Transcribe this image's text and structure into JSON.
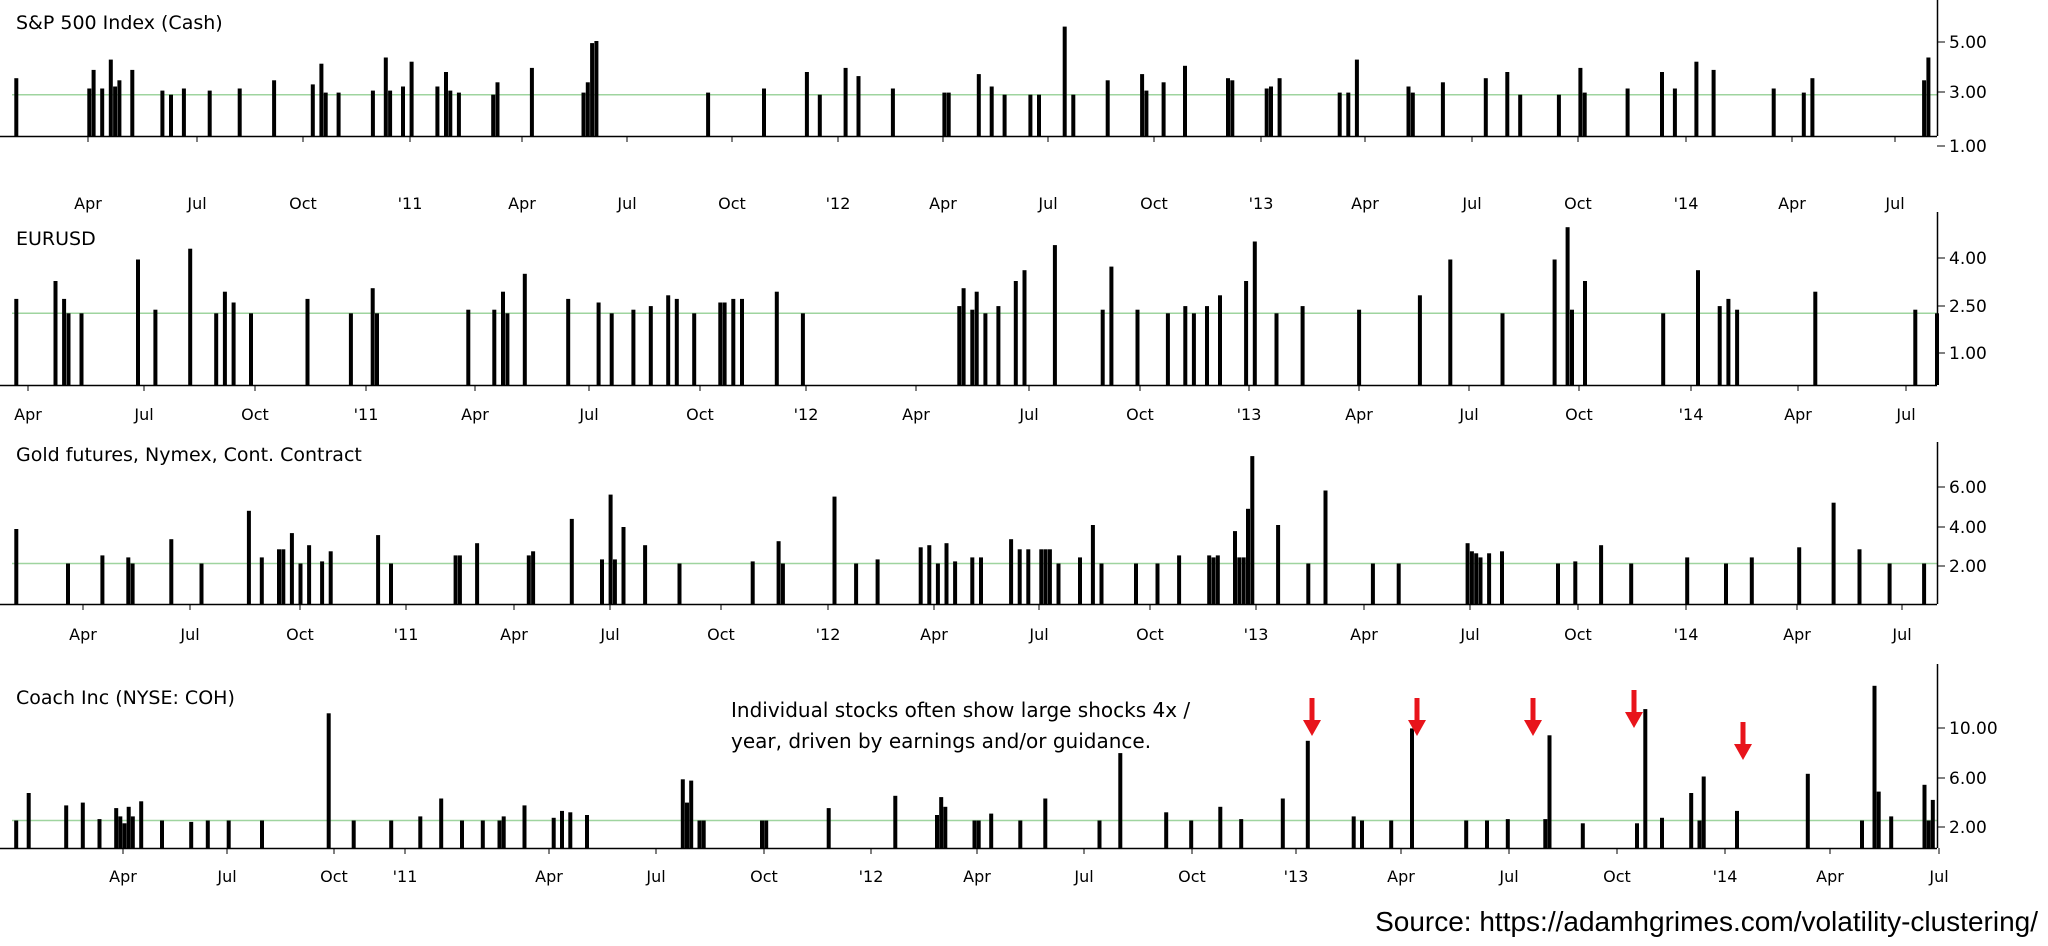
{
  "source_text": "Source: https://adamhgrimes.com/volatility-clustering/",
  "annotation": {
    "lines": [
      "Individual stocks often show large shocks 4x /",
      "year, driven by earnings and/or guidance."
    ],
    "arrow_color": "#e8141b"
  },
  "colors": {
    "bar": "#000000",
    "reference_line": "#9fd49f",
    "axis": "#000000"
  },
  "chart_data": [
    {
      "type": "bar",
      "title": "S&P 500 Index (Cash)",
      "x_labels": [
        "Apr",
        "Jul",
        "Oct",
        "'11",
        "Apr",
        "Jul",
        "Oct",
        "'12",
        "Apr",
        "Jul",
        "Oct",
        "'13",
        "Apr",
        "Jul",
        "Oct",
        "'14",
        "Apr",
        "Jul"
      ],
      "x_range": [
        2010.15,
        2014.63
      ],
      "y_ticks": [
        "5.00",
        "3.00",
        "1.00"
      ],
      "ylim": [
        0,
        6.2
      ],
      "reference_line": 2.0,
      "grid": false,
      "x": [
        2010.16,
        2010.33,
        2010.34,
        2010.36,
        2010.38,
        2010.39,
        2010.4,
        2010.43,
        2010.5,
        2010.52,
        2010.55,
        2010.61,
        2010.68,
        2010.76,
        2010.85,
        2010.87,
        2010.88,
        2010.91,
        2010.99,
        2011.02,
        2011.03,
        2011.06,
        2011.08,
        2011.14,
        2011.16,
        2011.17,
        2011.19,
        2011.27,
        2011.28,
        2011.36,
        2011.48,
        2011.49,
        2011.5,
        2011.51,
        2011.77,
        2011.9,
        2012.0,
        2012.03,
        2012.09,
        2012.12,
        2012.2,
        2012.32,
        2012.33,
        2012.4,
        2012.43,
        2012.46,
        2012.52,
        2012.54,
        2012.6,
        2012.62,
        2012.7,
        2012.78,
        2012.79,
        2012.83,
        2012.88,
        2012.98,
        2012.99,
        2013.07,
        2013.08,
        2013.1,
        2013.24,
        2013.26,
        2013.28,
        2013.4,
        2013.41,
        2013.48,
        2013.58,
        2013.63,
        2013.66,
        2013.75,
        2013.8,
        2013.81,
        2013.91,
        2013.99,
        2014.02,
        2014.07,
        2014.11,
        2014.25,
        2014.32,
        2014.34,
        2014.6,
        2014.61
      ],
      "values": [
        2.8,
        2.3,
        3.2,
        2.3,
        3.7,
        2.4,
        2.7,
        3.2,
        2.2,
        2.0,
        2.3,
        2.2,
        2.3,
        2.7,
        2.5,
        3.5,
        2.1,
        2.1,
        2.2,
        3.8,
        2.2,
        2.4,
        3.6,
        2.4,
        3.1,
        2.2,
        2.1,
        2.0,
        2.6,
        3.3,
        2.1,
        2.6,
        4.5,
        4.6,
        2.1,
        2.3,
        3.1,
        2.0,
        3.3,
        2.9,
        2.3,
        2.1,
        2.1,
        3.0,
        2.4,
        2.0,
        2.0,
        2.0,
        5.3,
        2.0,
        2.7,
        3.0,
        2.2,
        2.6,
        3.4,
        2.8,
        2.7,
        2.3,
        2.4,
        2.8,
        2.1,
        2.1,
        3.7,
        2.4,
        2.1,
        2.6,
        2.8,
        3.1,
        2.0,
        2.0,
        3.3,
        2.1,
        2.3,
        3.1,
        2.3,
        3.6,
        3.2,
        2.3,
        2.1,
        2.8,
        2.7,
        3.8
      ]
    },
    {
      "type": "bar",
      "title": "EURUSD",
      "x_labels": [
        "Apr",
        "Jul",
        "Oct",
        "'11",
        "Apr",
        "Jul",
        "Oct",
        "'12",
        "Apr",
        "Jul",
        "Oct",
        "'13",
        "Apr",
        "Jul",
        "Oct",
        "'14",
        "Apr",
        "Jul"
      ],
      "x_range": [
        2010.2,
        2014.63
      ],
      "y_ticks": [
        "4.00",
        "2.50",
        "1.00"
      ],
      "ylim": [
        0,
        4.6
      ],
      "reference_line": 2.0,
      "grid": false,
      "x": [
        2010.21,
        2010.3,
        2010.32,
        2010.33,
        2010.36,
        2010.49,
        2010.53,
        2010.61,
        2010.67,
        2010.69,
        2010.71,
        2010.75,
        2010.88,
        2010.98,
        2011.03,
        2011.04,
        2011.25,
        2011.31,
        2011.33,
        2011.34,
        2011.38,
        2011.48,
        2011.55,
        2011.58,
        2011.63,
        2011.67,
        2011.71,
        2011.73,
        2011.77,
        2011.83,
        2011.84,
        2011.86,
        2011.88,
        2011.96,
        2012.02,
        2012.38,
        2012.39,
        2012.41,
        2012.42,
        2012.44,
        2012.47,
        2012.51,
        2012.53,
        2012.6,
        2012.71,
        2012.73,
        2012.79,
        2012.86,
        2012.9,
        2012.92,
        2012.95,
        2012.98,
        2013.04,
        2013.06,
        2013.11,
        2013.17,
        2013.3,
        2013.44,
        2013.51,
        2013.63,
        2013.75,
        2013.78,
        2013.79,
        2013.82,
        2014.0,
        2014.08,
        2014.13,
        2014.15,
        2014.17,
        2014.35,
        2014.58,
        2014.63
      ],
      "values": [
        2.4,
        2.9,
        2.4,
        2.0,
        2.0,
        3.5,
        2.1,
        3.8,
        2.0,
        2.6,
        2.3,
        2.0,
        2.4,
        2.0,
        2.7,
        2.0,
        2.1,
        2.1,
        2.6,
        2.0,
        3.1,
        2.4,
        2.3,
        2.0,
        2.1,
        2.2,
        2.5,
        2.4,
        2.0,
        2.3,
        2.3,
        2.4,
        2.4,
        2.6,
        2.0,
        2.2,
        2.7,
        2.1,
        2.6,
        2.0,
        2.2,
        2.9,
        3.2,
        3.9,
        2.1,
        3.3,
        2.1,
        2.0,
        2.2,
        2.0,
        2.2,
        2.5,
        2.9,
        4.0,
        2.0,
        2.2,
        2.1,
        2.5,
        3.5,
        2.0,
        3.5,
        4.4,
        2.1,
        2.9,
        2.0,
        3.2,
        2.2,
        2.4,
        2.1,
        2.6,
        2.1,
        2.0
      ]
    },
    {
      "type": "bar",
      "title": "Gold futures, Nymex, Cont. Contract",
      "x_labels": [
        "Apr",
        "Jul",
        "Oct",
        "'11",
        "Apr",
        "Jul",
        "Oct",
        "'12",
        "Apr",
        "Jul",
        "Oct",
        "'13",
        "Apr",
        "Jul",
        "Oct",
        "'14",
        "Apr",
        "Jul"
      ],
      "x_range": [
        2010.16,
        2014.63
      ],
      "y_ticks": [
        "6.00",
        "4.00",
        "2.00"
      ],
      "ylim": [
        0,
        7.6
      ],
      "reference_line": 2.0,
      "grid": false,
      "x": [
        2010.17,
        2010.29,
        2010.37,
        2010.43,
        2010.44,
        2010.53,
        2010.6,
        2010.71,
        2010.74,
        2010.78,
        2010.79,
        2010.81,
        2010.83,
        2010.85,
        2010.88,
        2010.9,
        2011.01,
        2011.04,
        2011.19,
        2011.2,
        2011.24,
        2011.36,
        2011.37,
        2011.46,
        2011.53,
        2011.55,
        2011.56,
        2011.58,
        2011.63,
        2011.71,
        2011.88,
        2011.94,
        2011.95,
        2012.07,
        2012.12,
        2012.17,
        2012.27,
        2012.29,
        2012.31,
        2012.33,
        2012.35,
        2012.39,
        2012.41,
        2012.48,
        2012.5,
        2012.52,
        2012.55,
        2012.56,
        2012.57,
        2012.59,
        2012.64,
        2012.67,
        2012.69,
        2012.77,
        2012.82,
        2012.87,
        2012.94,
        2012.95,
        2012.96,
        2013.0,
        2013.01,
        2013.02,
        2013.03,
        2013.04,
        2013.1,
        2013.17,
        2013.21,
        2013.32,
        2013.38,
        2013.54,
        2013.55,
        2013.56,
        2013.57,
        2013.59,
        2013.62,
        2013.75,
        2013.79,
        2013.85,
        2013.92,
        2014.05,
        2014.14,
        2014.2,
        2014.31,
        2014.39,
        2014.45,
        2014.52,
        2014.6
      ],
      "values": [
        3.7,
        2.0,
        2.4,
        2.3,
        2.0,
        3.2,
        2.0,
        4.6,
        2.3,
        2.7,
        2.7,
        3.5,
        2.0,
        2.9,
        2.1,
        2.6,
        3.4,
        2.0,
        2.4,
        2.4,
        3.0,
        2.4,
        2.6,
        4.2,
        2.2,
        5.4,
        2.2,
        3.8,
        2.9,
        2.0,
        2.1,
        3.1,
        2.0,
        5.3,
        2.0,
        2.2,
        2.8,
        2.9,
        2.0,
        3.0,
        2.1,
        2.3,
        2.3,
        3.2,
        2.7,
        2.7,
        2.7,
        2.7,
        2.7,
        2.0,
        2.3,
        3.9,
        2.0,
        2.0,
        2.0,
        2.4,
        2.4,
        2.3,
        2.4,
        3.6,
        2.3,
        2.3,
        4.7,
        7.3,
        3.9,
        2.0,
        5.6,
        2.0,
        2.0,
        3.0,
        2.6,
        2.5,
        2.3,
        2.5,
        2.6,
        2.0,
        2.1,
        2.9,
        2.0,
        2.3,
        2.0,
        2.3,
        2.8,
        5.0,
        2.7,
        2.0,
        2.0
      ]
    },
    {
      "type": "bar",
      "title": "Coach Inc (NYSE: COH)",
      "x_labels": [
        "Apr",
        "Jul",
        "Oct",
        "'11",
        "Apr",
        "Jul",
        "Oct",
        "'12",
        "Apr",
        "Jul",
        "Oct",
        "'13",
        "Apr",
        "Jul",
        "Oct",
        "'14",
        "Apr",
        "Jul"
      ],
      "x_range": [
        2010.0,
        2014.62
      ],
      "y_ticks": [
        "10.00",
        "6.00",
        "2.00"
      ],
      "ylim": [
        0,
        12.8
      ],
      "reference_line": 2.0,
      "grid": false,
      "x": [
        2010.01,
        2010.04,
        2010.13,
        2010.17,
        2010.21,
        2010.25,
        2010.26,
        2010.27,
        2010.28,
        2010.29,
        2010.31,
        2010.36,
        2010.43,
        2010.47,
        2010.52,
        2010.6,
        2010.76,
        2010.82,
        2010.91,
        2010.98,
        2011.03,
        2011.08,
        2011.13,
        2011.17,
        2011.18,
        2011.23,
        2011.3,
        2011.32,
        2011.34,
        2011.38,
        2011.61,
        2011.62,
        2011.63,
        2011.65,
        2011.66,
        2011.8,
        2011.81,
        2011.96,
        2012.12,
        2012.22,
        2012.23,
        2012.24,
        2012.31,
        2012.32,
        2012.35,
        2012.42,
        2012.48,
        2012.61,
        2012.66,
        2012.77,
        2012.83,
        2012.9,
        2012.95,
        2013.05,
        2013.11,
        2013.22,
        2013.24,
        2013.31,
        2013.36,
        2013.49,
        2013.54,
        2013.59,
        2013.68,
        2013.69,
        2013.77,
        2013.9,
        2013.92,
        2013.96,
        2014.03,
        2014.05,
        2014.06,
        2014.14,
        2014.31,
        2014.44,
        2014.47,
        2014.48,
        2014.51,
        2014.59,
        2014.6,
        2014.61
      ],
      "values": [
        2.0,
        4.0,
        3.1,
        3.3,
        2.1,
        2.9,
        2.3,
        1.8,
        3.0,
        2.3,
        3.4,
        2.0,
        1.9,
        2.0,
        2.0,
        2.0,
        9.8,
        2.0,
        2.0,
        2.3,
        3.6,
        2.0,
        2.0,
        2.0,
        2.3,
        3.1,
        2.2,
        2.7,
        2.6,
        2.4,
        5.0,
        3.3,
        4.9,
        2.0,
        2.0,
        2.0,
        2.0,
        2.9,
        3.8,
        2.4,
        3.7,
        3.0,
        2.0,
        2.0,
        2.5,
        2.0,
        3.6,
        2.0,
        6.9,
        2.6,
        2.0,
        3.0,
        2.1,
        3.6,
        7.8,
        2.3,
        2.0,
        2.0,
        8.7,
        2.0,
        2.0,
        2.1,
        2.1,
        8.2,
        1.8,
        1.8,
        10.1,
        2.2,
        4.0,
        2.0,
        5.2,
        2.7,
        5.4,
        2.0,
        11.8,
        4.1,
        2.3,
        4.6,
        2.0,
        3.5
      ]
    }
  ]
}
